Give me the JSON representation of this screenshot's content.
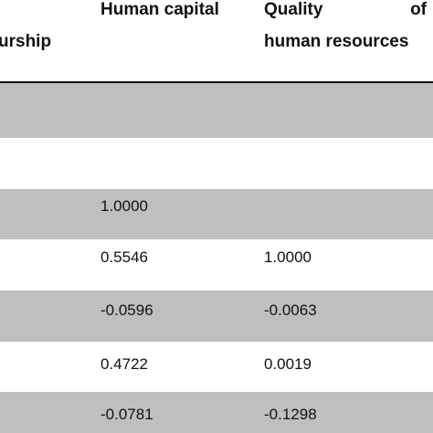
{
  "table": {
    "headers": {
      "col1_partial": "urship",
      "col2": "Human capital",
      "col3_line1_left": "Quality",
      "col3_line1_right": "of",
      "col3_line2": "human resources"
    },
    "rows": [
      {
        "shaded": true,
        "human_capital": "",
        "quality": ""
      },
      {
        "shaded": false,
        "human_capital": "",
        "quality": ""
      },
      {
        "shaded": true,
        "human_capital": "1.0000",
        "quality": ""
      },
      {
        "shaded": false,
        "human_capital": "0.5546",
        "quality": "1.0000"
      },
      {
        "shaded": true,
        "human_capital": "-0.0596",
        "quality": "-0.0063"
      },
      {
        "shaded": false,
        "human_capital": "0.4722",
        "quality": "0.0019"
      },
      {
        "shaded": true,
        "human_capital": "-0.0781",
        "quality": "-0.1298"
      }
    ]
  }
}
